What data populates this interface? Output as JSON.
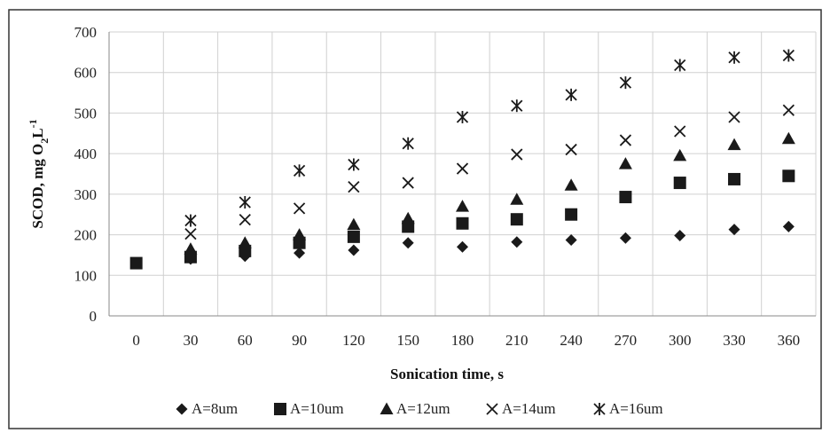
{
  "chart_data": {
    "type": "scatter",
    "xlabel": "Sonication time, s",
    "ylabel": "SCOD, mg O",
    "ylabel_sub": "2",
    "ylabel_mid": "L",
    "ylabel_sup": "-1",
    "x": [
      0,
      30,
      60,
      90,
      120,
      150,
      180,
      210,
      240,
      270,
      300,
      330,
      360
    ],
    "xticks": [
      "0",
      "30",
      "60",
      "90",
      "120",
      "150",
      "180",
      "210",
      "240",
      "270",
      "300",
      "330",
      "360"
    ],
    "yticks": [
      "0",
      "100",
      "200",
      "300",
      "400",
      "500",
      "600",
      "700"
    ],
    "ylim": [
      0,
      700
    ],
    "grid": true,
    "legend_position": "bottom",
    "series": [
      {
        "name": "A=8um",
        "marker": "diamond",
        "values": [
          130,
          140,
          147,
          155,
          162,
          180,
          170,
          182,
          187,
          192,
          198,
          213,
          220
        ]
      },
      {
        "name": "A=10um",
        "marker": "square",
        "values": [
          130,
          145,
          160,
          180,
          195,
          220,
          228,
          238,
          250,
          293,
          328,
          337,
          345
        ]
      },
      {
        "name": "A=12um",
        "marker": "triangle",
        "values": [
          null,
          165,
          180,
          200,
          225,
          240,
          270,
          287,
          322,
          375,
          395,
          422,
          437
        ]
      },
      {
        "name": "A=14um",
        "marker": "x",
        "values": [
          null,
          202,
          237,
          265,
          318,
          328,
          363,
          398,
          410,
          433,
          455,
          490,
          507
        ]
      },
      {
        "name": "A=16um",
        "marker": "asterisk",
        "values": [
          null,
          235,
          280,
          358,
          373,
          425,
          490,
          518,
          545,
          575,
          618,
          637,
          642
        ]
      }
    ],
    "colors": {
      "marker": "#1a1a1a",
      "grid": "#d0d0d0",
      "axis": "#888888",
      "frame": "#333333"
    }
  }
}
